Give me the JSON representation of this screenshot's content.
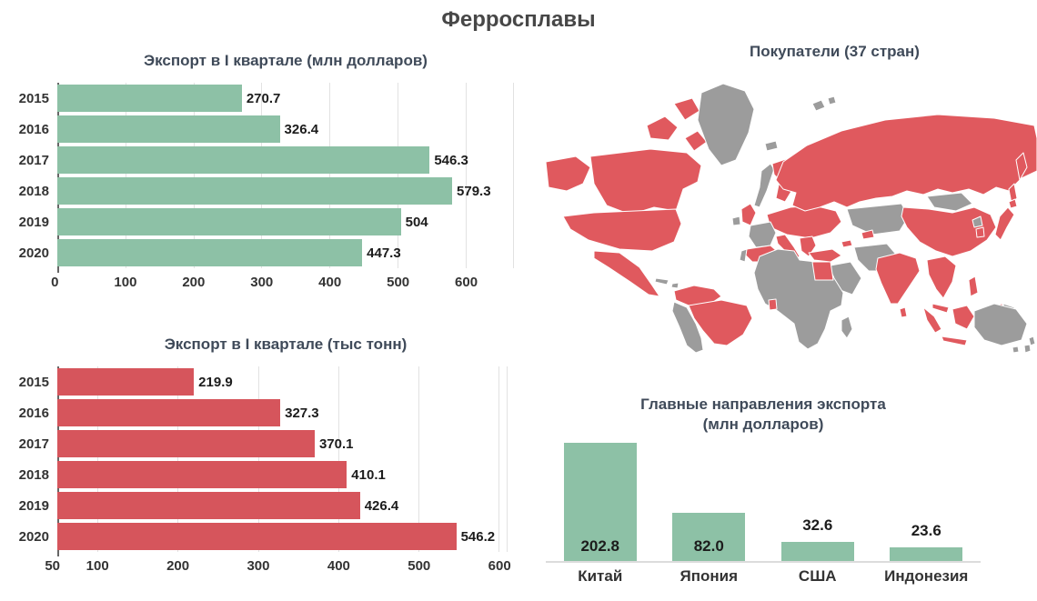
{
  "page_title": "Ферросплавы",
  "colors": {
    "green": "#8DC1A6",
    "red": "#D6555C",
    "map_red": "#E0595E",
    "map_gray": "#9C9C9C",
    "grid": "#E2E2E2",
    "axis": "#666666",
    "baseline": "#DCDCDC",
    "title": "#3F4A59",
    "main_title": "#474747",
    "text": "#1C1C1C",
    "tick": "#333333"
  },
  "map": {
    "title": "Покупатели (37 стран)",
    "buyer_color": "#E0595E",
    "non_buyer_color": "#9C9C9C",
    "buyer_examples": [
      "Канада",
      "США",
      "Мексика",
      "Колумбия",
      "Бразилия",
      "Испания",
      "Швеция",
      "Финляндия",
      "Великобритания",
      "Германия",
      "Польша",
      "Украина",
      "Италия",
      "Турция",
      "Египет",
      "Гана",
      "Россия",
      "Узбекистан",
      "Китай",
      "Индия",
      "Шри-Ланка",
      "Вьетнам",
      "Малайзия",
      "Индонезия",
      "Филиппины",
      "Южная Корея",
      "Япония"
    ]
  },
  "chart_data": [
    {
      "type": "bar",
      "orientation": "horizontal",
      "title": "Экспорт в I квартале (млн долларов)",
      "categories": [
        "2015",
        "2016",
        "2017",
        "2018",
        "2019",
        "2020"
      ],
      "values": [
        270.7,
        326.4,
        546.3,
        579.3,
        504,
        447.3
      ],
      "labels": [
        "270.7",
        "326.4",
        "546.3",
        "579.3",
        "504",
        "447.3"
      ],
      "xticks": [
        0,
        100,
        200,
        300,
        400,
        500,
        600
      ],
      "xlim": [
        0,
        670
      ],
      "grid": true,
      "bar_color": "green"
    },
    {
      "type": "bar",
      "orientation": "horizontal",
      "title": "Экспорт в I квартале (тыс тонн)",
      "categories": [
        "2015",
        "2016",
        "2017",
        "2018",
        "2019",
        "2020"
      ],
      "values": [
        219.9,
        327.3,
        370.1,
        410.1,
        426.4,
        546.2
      ],
      "labels": [
        "219.9",
        "327.3",
        "370.1",
        "410.1",
        "426.4",
        "546.2"
      ],
      "xticks": [
        50,
        100,
        200,
        300,
        400,
        500,
        600
      ],
      "xlim": [
        50,
        610
      ],
      "grid": true,
      "bar_color": "red"
    },
    {
      "type": "bar",
      "orientation": "vertical",
      "title_line1": "Главные направления экспорта",
      "title_line2": "(млн долларов)",
      "categories": [
        "Китай",
        "Япония",
        "США",
        "Индонезия"
      ],
      "values": [
        202.8,
        82.0,
        32.6,
        23.6
      ],
      "labels": [
        "202.8",
        "82.0",
        "32.6",
        "23.6"
      ],
      "label_placement": [
        "inside",
        "inside",
        "above",
        "above"
      ],
      "ylim": [
        0,
        202.8
      ],
      "grid": false,
      "bar_color": "green"
    }
  ]
}
